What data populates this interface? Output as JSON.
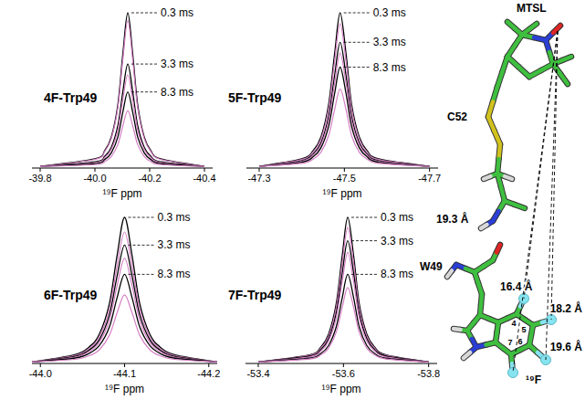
{
  "chart_data": [
    {
      "type": "line",
      "title": "4F-Trp49",
      "x_label": "¹⁹F ppm",
      "xlim": [
        -39.77,
        -40.43
      ],
      "xticks": [
        -39.8,
        {
          "value": -40,
          "label": "-40.0"
        },
        -40.2,
        -40.4
      ],
      "ylim": [
        0,
        1
      ],
      "tick_labels": "x",
      "grid": false,
      "x": [
        -39.8,
        -40.0,
        -40.036,
        -40.06,
        -40.084,
        -40.102,
        -40.12,
        -40.138,
        -40.156,
        -40.18,
        -40.204,
        -40.24,
        -40.4
      ],
      "series": [
        {
          "name": "0.3 ms",
          "color": "#000000",
          "values": [
            0.01,
            0.059,
            0.113,
            0.2,
            0.41,
            0.735,
            1.0,
            0.735,
            0.41,
            0.2,
            0.113,
            0.059,
            0.01
          ]
        },
        {
          "color": "#d47fc4",
          "values": [
            0.01,
            0.056,
            0.107,
            0.19,
            0.39,
            0.698,
            0.95,
            0.698,
            0.39,
            0.19,
            0.107,
            0.056,
            0.01
          ]
        },
        {
          "name": "3.3 ms",
          "color": "#000000",
          "values": [
            0.01,
            0.04,
            0.076,
            0.134,
            0.275,
            0.492,
            0.67,
            0.492,
            0.275,
            0.134,
            0.076,
            0.04,
            0.01
          ]
        },
        {
          "color": "#d47fc4",
          "values": [
            0.01,
            0.035,
            0.068,
            0.12,
            0.246,
            0.441,
            0.6,
            0.441,
            0.246,
            0.12,
            0.068,
            0.035,
            0.01
          ]
        },
        {
          "name": "8.3 ms",
          "color": "#000000",
          "values": [
            0.01,
            0.029,
            0.055,
            0.098,
            0.201,
            0.36,
            0.49,
            0.36,
            0.201,
            0.098,
            0.055,
            0.029,
            0.01
          ]
        },
        {
          "color": "#d47fc4",
          "values": [
            0.01,
            0.022,
            0.042,
            0.074,
            0.152,
            0.272,
            0.37,
            0.272,
            0.152,
            0.074,
            0.042,
            0.022,
            0.01
          ]
        }
      ]
    },
    {
      "type": "line",
      "title": "5F-Trp49",
      "x_label": "¹⁹F ppm",
      "xlim": [
        -47.27,
        -47.72
      ],
      "xticks": [
        -47.3,
        -47.5,
        -47.7
      ],
      "ylim": [
        0,
        1
      ],
      "tick_labels": "x",
      "grid": false,
      "x": [
        -47.3,
        -47.4,
        -47.427,
        -47.445,
        -47.463,
        -47.477,
        -47.49,
        -47.504,
        -47.517,
        -47.535,
        -47.553,
        -47.58,
        -47.7
      ],
      "series": [
        {
          "name": "0.3 ms",
          "color": "#000000",
          "values": [
            0.01,
            0.059,
            0.113,
            0.2,
            0.41,
            0.735,
            1.0,
            0.735,
            0.41,
            0.2,
            0.113,
            0.059,
            0.01
          ]
        },
        {
          "color": "#d47fc4",
          "values": [
            0.01,
            0.055,
            0.105,
            0.186,
            0.381,
            0.684,
            0.93,
            0.684,
            0.381,
            0.186,
            0.105,
            0.055,
            0.01
          ]
        },
        {
          "name": "3.3 ms",
          "color": "#000000",
          "values": [
            0.01,
            0.048,
            0.092,
            0.162,
            0.332,
            0.595,
            0.81,
            0.595,
            0.332,
            0.162,
            0.092,
            0.048,
            0.01
          ]
        },
        {
          "color": "#d47fc4",
          "values": [
            0.01,
            0.044,
            0.084,
            0.148,
            0.303,
            0.544,
            0.74,
            0.544,
            0.303,
            0.148,
            0.084,
            0.044,
            0.01
          ]
        },
        {
          "name": "8.3 ms",
          "color": "#000000",
          "values": [
            0.01,
            0.038,
            0.073,
            0.13,
            0.267,
            0.478,
            0.65,
            0.478,
            0.267,
            0.13,
            0.073,
            0.038,
            0.01
          ]
        },
        {
          "color": "#d47fc4",
          "values": [
            0.01,
            0.03,
            0.058,
            0.102,
            0.209,
            0.375,
            0.51,
            0.375,
            0.209,
            0.102,
            0.058,
            0.03,
            0.01
          ]
        }
      ]
    },
    {
      "type": "line",
      "title": "6F-Trp49",
      "x_label": "¹⁹F ppm",
      "xlim": [
        -43.99,
        -44.21
      ],
      "xticks": [
        {
          "value": -44,
          "label": "-44.0"
        },
        -44.1,
        -44.2
      ],
      "ylim": [
        0,
        1
      ],
      "tick_labels": "x",
      "grid": false,
      "x": [
        -43.99,
        -44.04,
        -44.058,
        -44.07,
        -44.082,
        -44.091,
        -44.1,
        -44.109,
        -44.118,
        -44.13,
        -44.142,
        -44.16,
        -44.21
      ],
      "series": [
        {
          "name": "0.3 ms",
          "color": "#000000",
          "values": [
            0.01,
            0.059,
            0.113,
            0.2,
            0.41,
            0.735,
            1.0,
            0.735,
            0.41,
            0.2,
            0.113,
            0.059,
            0.01
          ]
        },
        {
          "color": "#d47fc4",
          "values": [
            0.01,
            0.053,
            0.102,
            0.18,
            0.369,
            0.662,
            0.9,
            0.662,
            0.369,
            0.18,
            0.102,
            0.053,
            0.01
          ]
        },
        {
          "name": "3.3 ms",
          "color": "#000000",
          "values": [
            0.01,
            0.048,
            0.092,
            0.162,
            0.332,
            0.595,
            0.81,
            0.595,
            0.332,
            0.162,
            0.092,
            0.048,
            0.01
          ]
        },
        {
          "color": "#d47fc4",
          "values": [
            0.01,
            0.042,
            0.081,
            0.144,
            0.295,
            0.529,
            0.72,
            0.529,
            0.295,
            0.144,
            0.081,
            0.042,
            0.01
          ]
        },
        {
          "name": "8.3 ms",
          "color": "#000000",
          "values": [
            0.01,
            0.036,
            0.069,
            0.122,
            0.25,
            0.448,
            0.61,
            0.448,
            0.25,
            0.122,
            0.069,
            0.036,
            0.01
          ]
        },
        {
          "color": "#d47fc4",
          "values": [
            0.01,
            0.028,
            0.053,
            0.094,
            0.193,
            0.345,
            0.47,
            0.345,
            0.193,
            0.094,
            0.053,
            0.028,
            0.01
          ]
        }
      ]
    },
    {
      "type": "line",
      "title": "7F-Trp49",
      "x_label": "¹⁹F ppm",
      "xlim": [
        -53.37,
        -53.82
      ],
      "xticks": [
        -53.4,
        -53.6,
        -53.8
      ],
      "ylim": [
        0,
        1
      ],
      "tick_labels": "x",
      "grid": false,
      "x": [
        -53.4,
        -53.52,
        -53.547,
        -53.565,
        -53.583,
        -53.597,
        -53.61,
        -53.624,
        -53.637,
        -53.655,
        -53.673,
        -53.7,
        -53.8
      ],
      "series": [
        {
          "name": "0.3 ms",
          "color": "#000000",
          "values": [
            0.01,
            0.059,
            0.113,
            0.2,
            0.41,
            0.735,
            1.0,
            0.735,
            0.41,
            0.2,
            0.113,
            0.059,
            0.01
          ]
        },
        {
          "color": "#d47fc4",
          "values": [
            0.01,
            0.055,
            0.105,
            0.186,
            0.381,
            0.684,
            0.93,
            0.684,
            0.381,
            0.186,
            0.105,
            0.055,
            0.01
          ]
        },
        {
          "name": "3.3 ms",
          "color": "#000000",
          "values": [
            0.01,
            0.05,
            0.095,
            0.168,
            0.344,
            0.617,
            0.84,
            0.617,
            0.344,
            0.168,
            0.095,
            0.05,
            0.01
          ]
        },
        {
          "color": "#d47fc4",
          "values": [
            0.01,
            0.045,
            0.086,
            0.152,
            0.312,
            0.559,
            0.76,
            0.559,
            0.312,
            0.152,
            0.086,
            0.045,
            0.01
          ]
        },
        {
          "name": "8.3 ms",
          "color": "#000000",
          "values": [
            0.01,
            0.036,
            0.069,
            0.122,
            0.25,
            0.448,
            0.61,
            0.448,
            0.25,
            0.122,
            0.069,
            0.036,
            0.01
          ]
        },
        {
          "color": "#d47fc4",
          "values": [
            0.01,
            0.031,
            0.059,
            0.104,
            0.213,
            0.382,
            0.52,
            0.382,
            0.213,
            0.104,
            0.059,
            0.031,
            0.01
          ]
        }
      ]
    }
  ],
  "structure": {
    "labels": {
      "probe": "MTSL",
      "cysteine": "C52",
      "tryptophan": "W49",
      "fluorine": "¹⁹F"
    },
    "distances": [
      "19.3 Å",
      "16.4 Å",
      "18.2 Å",
      "19.6 Å"
    ],
    "ring_positions": [
      "4",
      "5",
      "6",
      "7"
    ]
  }
}
